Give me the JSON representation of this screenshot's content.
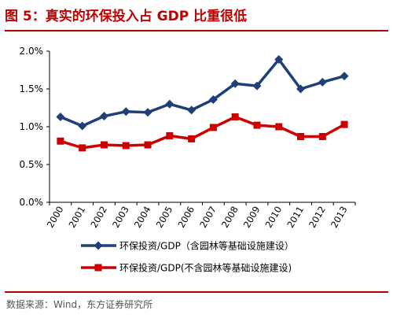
{
  "title": "图 5：真实的环保投入占 GDP 比重很低",
  "source": "数据来源：Wind，东方证券研究所",
  "colors": {
    "title": "#c00000",
    "rule": "#b30000",
    "series1": "#1f3f77",
    "series2": "#cc0000"
  },
  "chart_data": {
    "type": "line",
    "x": [
      "2000",
      "2001",
      "2002",
      "2003",
      "2004",
      "2005",
      "2006",
      "2007",
      "2008",
      "2009",
      "2010",
      "2011",
      "2012",
      "2013"
    ],
    "series": [
      {
        "name": "环保投资/GDP（含园林等基础设施建设）",
        "marker": "diamond",
        "values": [
          1.13,
          1.01,
          1.14,
          1.2,
          1.19,
          1.3,
          1.22,
          1.36,
          1.57,
          1.54,
          1.89,
          1.5,
          1.59,
          1.67
        ]
      },
      {
        "name": "环保投资/GDP(不含园林等基础设施建设)",
        "marker": "square",
        "values": [
          0.81,
          0.72,
          0.76,
          0.75,
          0.76,
          0.88,
          0.84,
          0.99,
          1.13,
          1.02,
          1.0,
          0.87,
          0.87,
          1.03
        ]
      }
    ],
    "y_ticks": [
      "0.0%",
      "0.5%",
      "1.0%",
      "1.5%",
      "2.0%"
    ],
    "ylim": [
      0,
      2.0
    ],
    "grid": false,
    "legend": "bottom"
  }
}
